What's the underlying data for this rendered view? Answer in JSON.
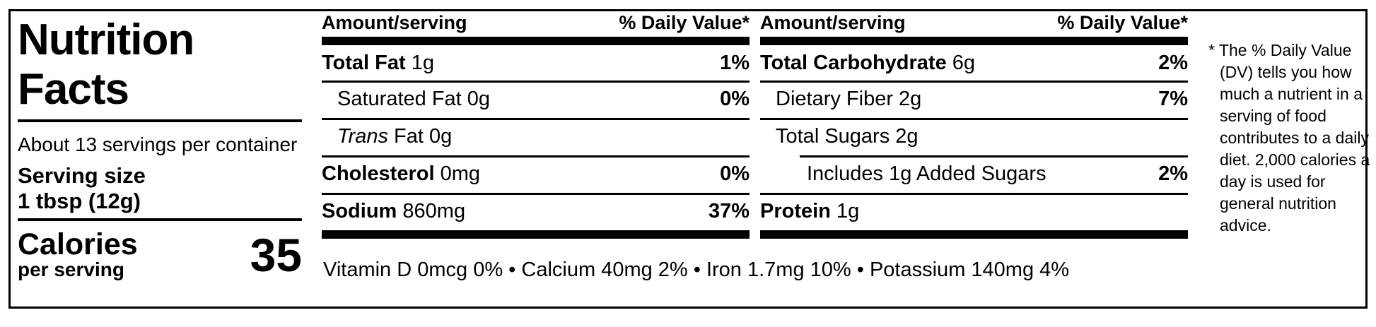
{
  "colors": {
    "text": "#000000",
    "background": "#ffffff"
  },
  "panel": {
    "title": "Nutrition Facts",
    "servings_per_container": "About 13 servings per container",
    "serving_size_label": "Serving size",
    "serving_size_value": "1 tbsp (12g)",
    "calories_label": "Calories",
    "calories_sublabel": "per serving",
    "calories_value": "35"
  },
  "columns": [
    {
      "header": {
        "amount": "Amount/serving",
        "daily_value": "% Daily Value*"
      },
      "rows": [
        {
          "bold": "Total Fat",
          "rest": " 1g",
          "dv": "1%"
        },
        {
          "plain": "Saturated Fat 0g",
          "dv": "0%"
        },
        {
          "italic": "Trans",
          "rest": " Fat 0g"
        },
        {
          "bold": "Cholesterol",
          "rest": " 0mg",
          "dv": "0%"
        },
        {
          "bold": "Sodium",
          "rest": " 860mg",
          "dv": "37%"
        }
      ]
    },
    {
      "header": {
        "amount": "Amount/serving",
        "daily_value": "% Daily Value*"
      },
      "rows": [
        {
          "bold": "Total Carbohydrate",
          "rest": " 6g",
          "dv": "2%"
        },
        {
          "plain": "Dietary Fiber 2g",
          "dv": "7%"
        },
        {
          "plain": "Total Sugars 2g"
        },
        {
          "plain": "Includes 1g Added Sugars",
          "dv": "2%"
        },
        {
          "bold": "Protein",
          "rest": " 1g"
        }
      ]
    }
  ],
  "micronutrients": "Vitamin D 0mcg 0% • Calcium 40mg 2% • Iron 1.7mg 10% • Potassium 140mg 4%",
  "footnote": "* The % Daily Value (DV) tells you how much a nutrient in a serving of food contributes to a daily diet. 2,000 calories a day is used for general nutrition advice."
}
